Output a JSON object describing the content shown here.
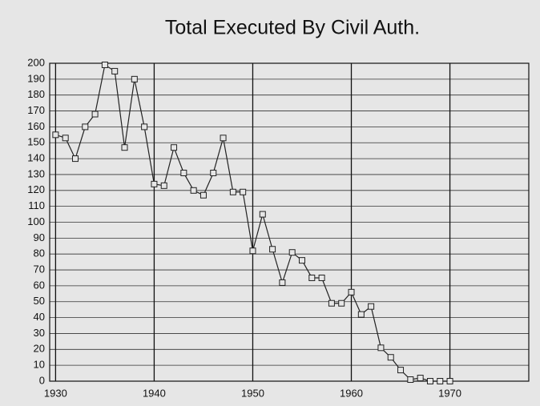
{
  "chart_data": {
    "type": "line",
    "title": "Total Executed By Civil Auth.",
    "x": [
      1930,
      1931,
      1932,
      1933,
      1934,
      1935,
      1936,
      1937,
      1938,
      1939,
      1940,
      1941,
      1942,
      1943,
      1944,
      1945,
      1946,
      1947,
      1948,
      1949,
      1950,
      1951,
      1952,
      1953,
      1954,
      1955,
      1956,
      1957,
      1958,
      1959,
      1960,
      1961,
      1962,
      1963,
      1964,
      1965,
      1966,
      1967,
      1968,
      1969,
      1970
    ],
    "series": [
      {
        "name": "Total Executed",
        "color": "#222222",
        "values": [
          155,
          153,
          140,
          160,
          168,
          199,
          195,
          147,
          190,
          160,
          124,
          123,
          147,
          131,
          120,
          117,
          131,
          153,
          119,
          119,
          82,
          105,
          83,
          62,
          81,
          76,
          65,
          65,
          49,
          49,
          56,
          42,
          47,
          21,
          15,
          7,
          1,
          2,
          0,
          0,
          0
        ]
      }
    ],
    "xlim": [
      1929.4,
      1978
    ],
    "xticks": [
      1930,
      1940,
      1950,
      1960,
      1970
    ],
    "ylim": [
      0,
      200
    ],
    "yticks": [
      0,
      10,
      20,
      30,
      40,
      50,
      60,
      70,
      80,
      90,
      100,
      110,
      120,
      130,
      140,
      150,
      160,
      170,
      180,
      190,
      200
    ],
    "grid": true
  }
}
